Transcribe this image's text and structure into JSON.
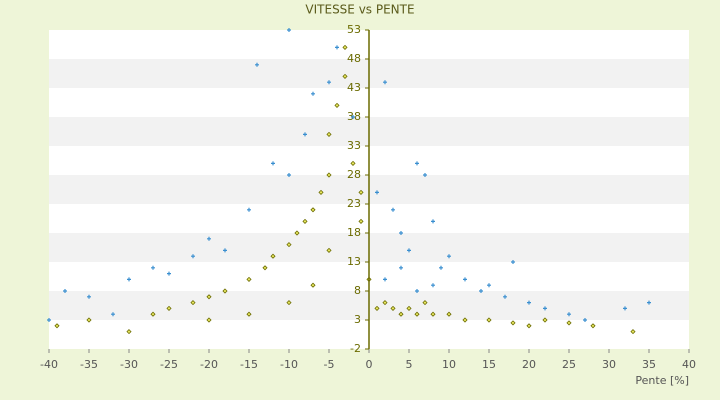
{
  "chart_data": {
    "type": "scatter",
    "title": "VITESSE vs PENTE",
    "x_label": "Pente [%]",
    "xlim": [
      -40,
      40
    ],
    "xticks": [
      -40,
      -35,
      -30,
      -25,
      -20,
      -15,
      -10,
      -5,
      0,
      5,
      10,
      15,
      20,
      25,
      30,
      35,
      40
    ],
    "ylim": [
      -2,
      53
    ],
    "yticks": [
      -2,
      3,
      8,
      13,
      18,
      23,
      28,
      33,
      38,
      43,
      48,
      53
    ],
    "series": [
      {
        "color": "#6b6b00",
        "marker": "diamond",
        "x": [
          -39,
          -35,
          -30,
          -27,
          -25,
          -22,
          -20,
          -18,
          -15,
          -13,
          -12,
          -10,
          -9,
          -8,
          -7,
          -6,
          -5,
          -5,
          -4,
          -3,
          -3,
          -2,
          -1,
          -1,
          0,
          1,
          2,
          3,
          4,
          5,
          6,
          7,
          8,
          10,
          12,
          15,
          18,
          20,
          22,
          25,
          28,
          33,
          -20,
          -15,
          -10,
          -7,
          -5
        ],
        "values": [
          2,
          3,
          1,
          4,
          5,
          6,
          7,
          8,
          10,
          12,
          14,
          16,
          18,
          20,
          22,
          25,
          28,
          35,
          40,
          45,
          50,
          30,
          25,
          20,
          10,
          5,
          6,
          5,
          4,
          5,
          4,
          6,
          4,
          4,
          3,
          3,
          2.5,
          2,
          3,
          2.5,
          2,
          1,
          3,
          4,
          6,
          9,
          15
        ]
      },
      {
        "color": "#3a8fd0",
        "marker": "plus",
        "x": [
          -40,
          -38,
          -35,
          -32,
          -30,
          -27,
          -25,
          -22,
          -20,
          -18,
          -15,
          -14,
          -12,
          -10,
          -10,
          -8,
          -7,
          -5,
          -4,
          -2,
          1,
          2,
          3,
          4,
          5,
          6,
          7,
          8,
          9,
          10,
          12,
          14,
          15,
          17,
          18,
          20,
          22,
          25,
          27,
          32,
          35,
          2,
          4,
          6,
          8
        ],
        "values": [
          3,
          8,
          7,
          4,
          10,
          12,
          11,
          14,
          17,
          15,
          22,
          47,
          30,
          28,
          53,
          35,
          42,
          44,
          50,
          38,
          25,
          44,
          22,
          18,
          15,
          30,
          28,
          20,
          12,
          14,
          10,
          8,
          9,
          7,
          13,
          6,
          5,
          4,
          3,
          5,
          6,
          10,
          12,
          8,
          9
        ]
      }
    ]
  }
}
